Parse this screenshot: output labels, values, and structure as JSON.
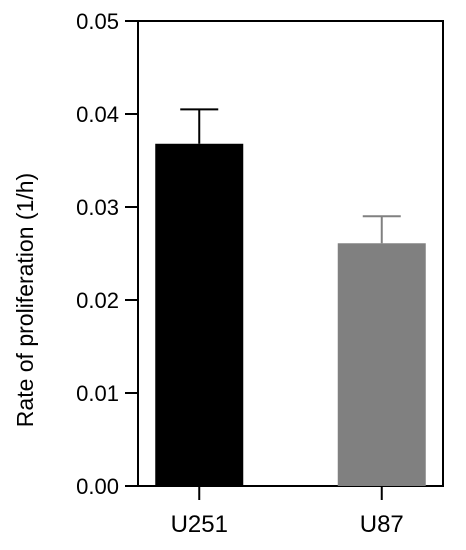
{
  "chart_data": {
    "type": "bar",
    "title": "",
    "xlabel": "",
    "ylabel": "Rate of proliferation (1/h)",
    "ylim": [
      0,
      0.05
    ],
    "yticks": [
      "0.00",
      "0.01",
      "0.02",
      "0.03",
      "0.04",
      "0.05"
    ],
    "ytick_values": [
      0,
      0.01,
      0.02,
      0.03,
      0.04,
      0.05
    ],
    "categories": [
      "U251",
      "U87"
    ],
    "values": [
      0.0368,
      0.0261
    ],
    "errors": [
      0.0037,
      0.0029
    ],
    "colors": [
      "#000000",
      "#808080"
    ],
    "grid": false,
    "legend": "none"
  }
}
